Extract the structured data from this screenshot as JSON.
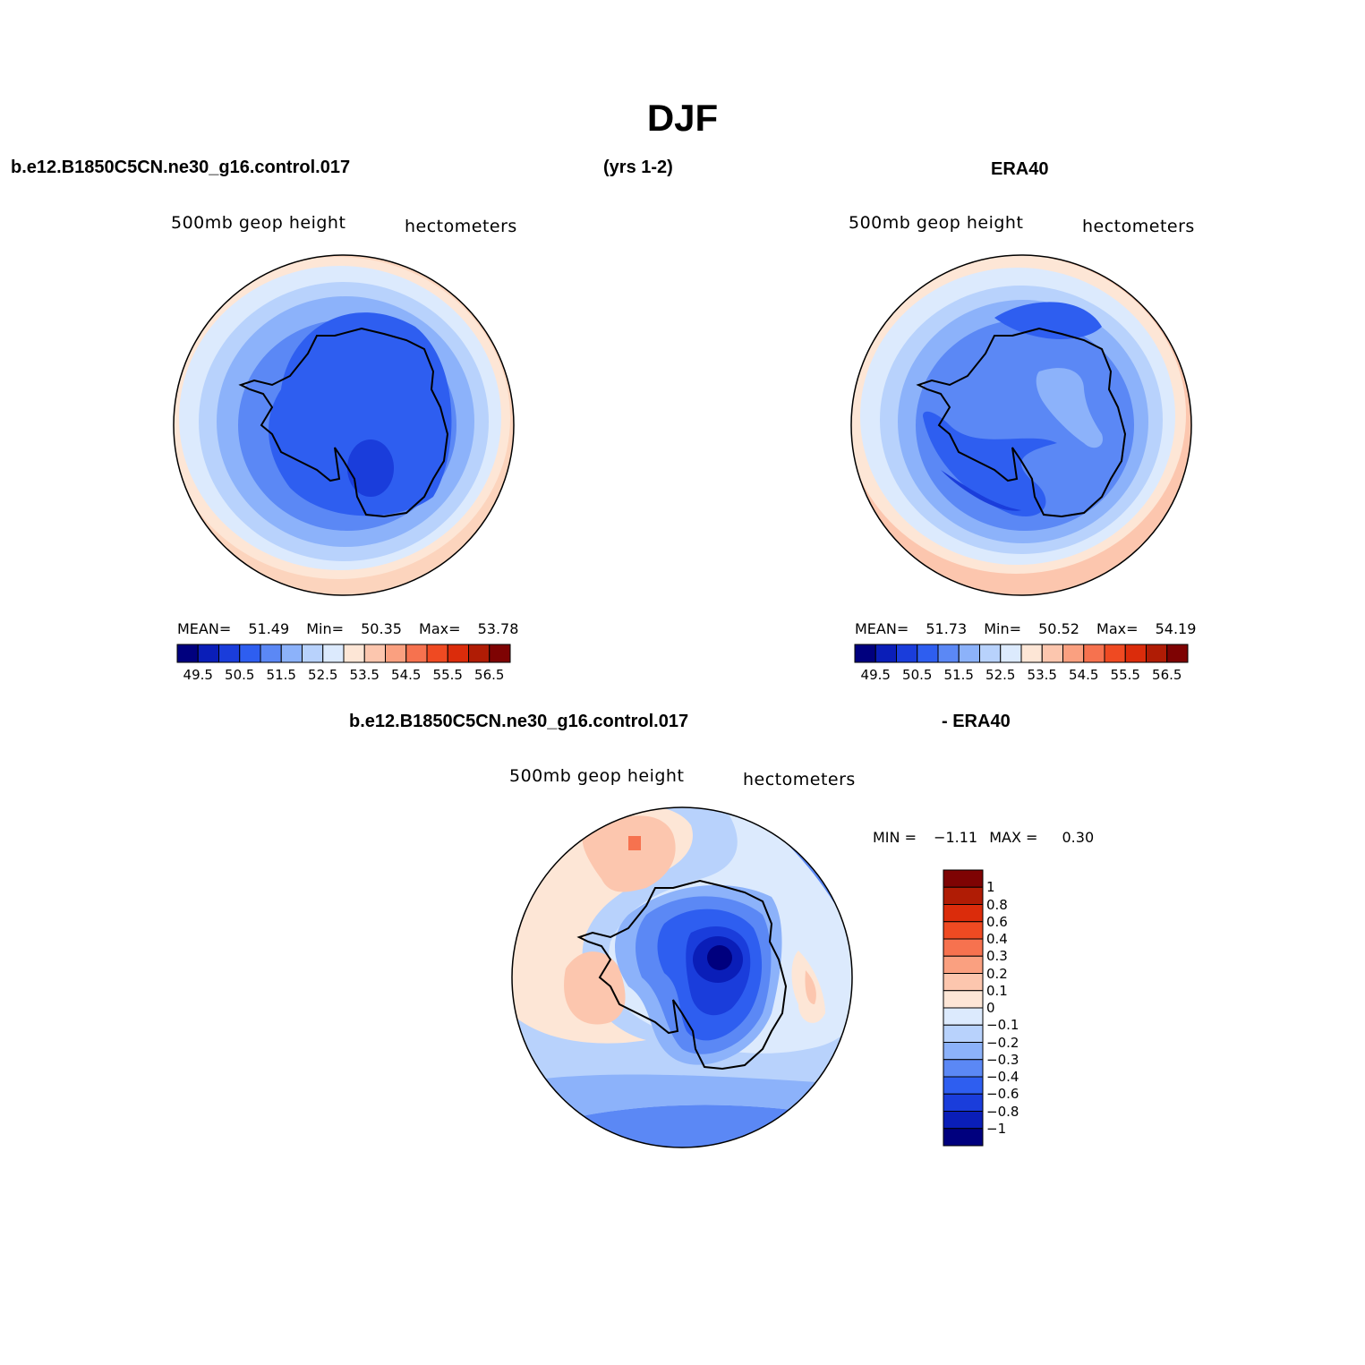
{
  "figure": {
    "title": "DJF",
    "top_left_run": "b.e12.B1850C5CN.ne30_g16.control.017",
    "top_period": "(yrs 1-2)",
    "top_right_ref": "ERA40",
    "bottom_run": "b.e12.B1850C5CN.ne30_g16.control.017",
    "bottom_ref": "- ERA40"
  },
  "panels": {
    "model": {
      "variable": "500mb  geop  height",
      "units": "hectometers",
      "mean_label": "MEAN=",
      "mean": "51.49",
      "min_label": "Min=",
      "min": "50.35",
      "max_label": "Max=",
      "max": "53.78"
    },
    "obs": {
      "variable": "500mb  geop  height",
      "units": "hectometers",
      "mean_label": "MEAN=",
      "mean": "51.73",
      "min_label": "Min=",
      "min": "50.52",
      "max_label": "Max=",
      "max": "54.19"
    },
    "diff": {
      "variable": "500mb  geop  height",
      "units": "hectometers",
      "min_label": "MIN =",
      "min": "−1.11",
      "max_label": "MAX =",
      "max": "0.30"
    }
  },
  "colorbar_abs": {
    "colors": [
      "#00007e",
      "#0a1eb8",
      "#1a3ddb",
      "#2e5ef0",
      "#5b88f5",
      "#8cb2fa",
      "#b8d2fc",
      "#dceafd",
      "#fde6d6",
      "#fcc6ae",
      "#faa080",
      "#f6724f",
      "#ef4a22",
      "#db2c0b",
      "#b01c05",
      "#7e0303"
    ],
    "tick_labels": [
      "49.5",
      "50.5",
      "51.5",
      "52.5",
      "53.5",
      "54.5",
      "55.5",
      "56.5"
    ]
  },
  "colorbar_diff": {
    "colors": [
      "#7e0303",
      "#b01c05",
      "#db2c0b",
      "#ef4a22",
      "#f6724f",
      "#faa080",
      "#fcc6ae",
      "#fde6d6",
      "#dceafd",
      "#b8d2fc",
      "#8cb2fa",
      "#5b88f5",
      "#2e5ef0",
      "#1a3ddb",
      "#0a1eb8",
      "#00007e"
    ],
    "tick_labels": [
      "1",
      "0.8",
      "0.6",
      "0.4",
      "0.3",
      "0.2",
      "0.1",
      "0",
      "−0.1",
      "−0.2",
      "−0.3",
      "−0.4",
      "−0.6",
      "−0.8",
      "−1"
    ]
  }
}
